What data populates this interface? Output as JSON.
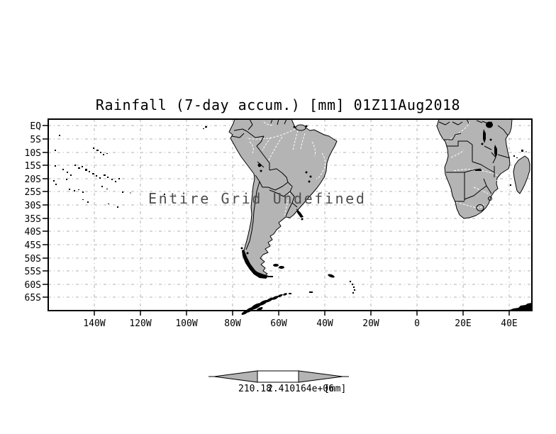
{
  "title": "Rainfall (7-day accum.) [mm] 01Z11Aug2018",
  "map": {
    "center_message": "Entire Grid Undefined",
    "y_axis": {
      "labels": [
        "EQ",
        "5S",
        "10S",
        "15S",
        "20S",
        "25S",
        "30S",
        "35S",
        "40S",
        "45S",
        "50S",
        "55S",
        "60S",
        "65S"
      ]
    },
    "x_axis": {
      "labels": [
        "140W",
        "120W",
        "100W",
        "80W",
        "60W",
        "40W",
        "20W",
        "0",
        "20E",
        "40E"
      ]
    }
  },
  "colorbar": {
    "min_label": "210.18",
    "max_label": "2.410164e+06",
    "unit_label": "[mm]"
  },
  "colors": {
    "background": "#ffffff",
    "land": "#b4b4b4",
    "grid": "#b0b0b0",
    "frame": "#000000",
    "message": "#4d4d4d",
    "river": "#ffffff"
  }
}
